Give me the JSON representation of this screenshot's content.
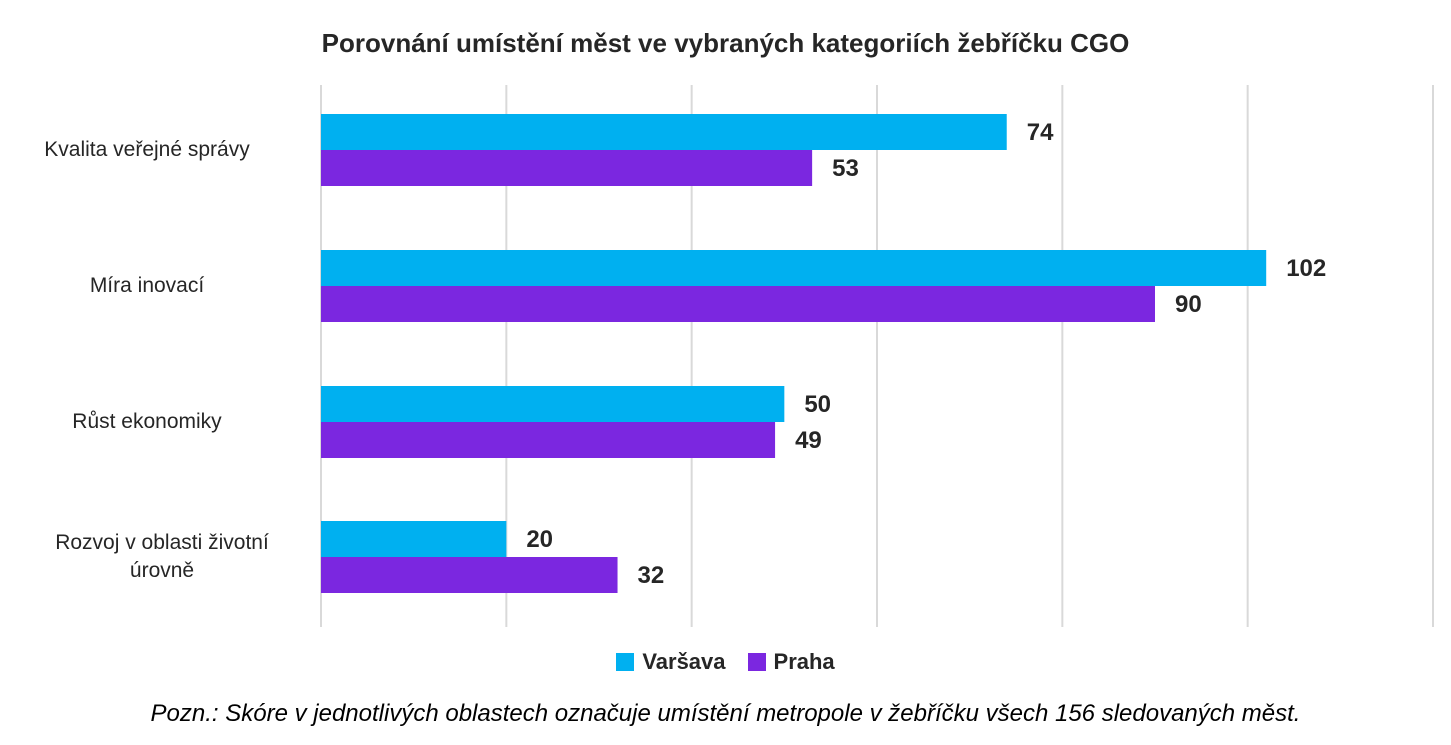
{
  "chart_data": {
    "type": "bar",
    "orientation": "horizontal",
    "title": "Porovnání umístění měst ve vybraných kategoriích žebříčku CGO",
    "categories": [
      "Kvalita veřejné správy",
      "Míra inovací",
      "Růst ekonomiky",
      "Rozvoj v oblasti životní úrovně"
    ],
    "series": [
      {
        "name": "Varšava",
        "color": "#00B0F0",
        "values": [
          74,
          102,
          50,
          20
        ]
      },
      {
        "name": "Praha",
        "color": "#7B27E0",
        "values": [
          53,
          90,
          49,
          32
        ]
      }
    ],
    "xlim": [
      0,
      120
    ],
    "x_gridlines": [
      0,
      20,
      40,
      60,
      80,
      100,
      120
    ],
    "legend_position": "bottom",
    "data_labels": true,
    "note": "Pozn.: Skóre v jednotlivých oblastech označuje umístění metropole v žebříčku všech 156 sledovaných měst."
  }
}
